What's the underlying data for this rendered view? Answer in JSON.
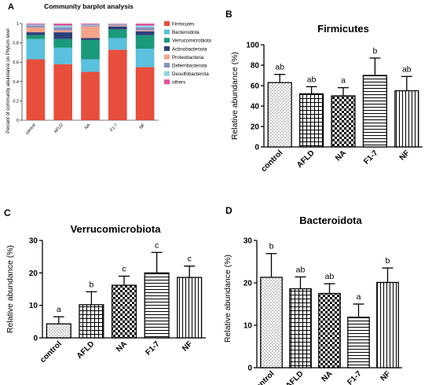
{
  "chart_data": [
    {
      "panel": "A",
      "type": "bar",
      "stacked": true,
      "title": "Community barplot analysis",
      "ylabel": "Percent of community abundance on Phylum level",
      "xlabel": "",
      "ylim": [
        0,
        1
      ],
      "yticks": [
        "0",
        "0.2",
        "0.4",
        "0.6",
        "0.8",
        "1"
      ],
      "categories": [
        "control",
        "AFLD",
        "NA",
        "F1-7",
        "NF"
      ],
      "series": [
        {
          "name": "Firmicutes",
          "color": "#e84e3c",
          "values": [
            0.63,
            0.58,
            0.5,
            0.73,
            0.55
          ]
        },
        {
          "name": "Bacteroidota",
          "color": "#5bc0de",
          "values": [
            0.21,
            0.17,
            0.13,
            0.12,
            0.19
          ]
        },
        {
          "name": "Verrucomicrobiota",
          "color": "#1a9a7a",
          "values": [
            0.04,
            0.09,
            0.2,
            0.09,
            0.14
          ]
        },
        {
          "name": "Actinobacteriota",
          "color": "#2d3f7a",
          "values": [
            0.03,
            0.07,
            0.02,
            0.03,
            0.04
          ]
        },
        {
          "name": "Proteobacteria",
          "color": "#f4a48a",
          "values": [
            0.05,
            0.02,
            0.12,
            0.01,
            0.01
          ]
        },
        {
          "name": "Deferribacterota",
          "color": "#8a90c0",
          "values": [
            0.02,
            0.03,
            0.01,
            0.01,
            0.03
          ]
        },
        {
          "name": "Desulfobacterota",
          "color": "#8fd3e0",
          "values": [
            0.01,
            0.02,
            0.01,
            0.005,
            0.02
          ]
        },
        {
          "name": "others",
          "color": "#e0529a",
          "values": [
            0.01,
            0.02,
            0.01,
            0.005,
            0.02
          ]
        }
      ]
    },
    {
      "panel": "B",
      "type": "bar",
      "title": "Firmicutes",
      "ylabel": "Relative abundance (%)",
      "xlabel": "",
      "ylim": [
        0,
        100
      ],
      "yticks": [
        "0",
        "20",
        "40",
        "60",
        "80",
        "100"
      ],
      "categories": [
        "control",
        "AFLD",
        "NA",
        "F1-7",
        "NF"
      ],
      "values": [
        63,
        52,
        50,
        70,
        55
      ],
      "errors": [
        8,
        7,
        8,
        17,
        14
      ],
      "sig_labels": [
        "ab",
        "ab",
        "a",
        "b",
        "ab"
      ]
    },
    {
      "panel": "C",
      "type": "bar",
      "title": "Verrucomicrobiota",
      "ylabel": "Relative abundance (%)",
      "xlabel": "",
      "ylim": [
        0,
        30
      ],
      "yticks": [
        "0",
        "10",
        "20",
        "30"
      ],
      "categories": [
        "control",
        "AFLD",
        "NA",
        "F1-7",
        "NF"
      ],
      "values": [
        4.3,
        10.2,
        16.2,
        20.0,
        18.6
      ],
      "errors": [
        2.2,
        4.0,
        2.8,
        6.3,
        3.5
      ],
      "sig_labels": [
        "a",
        "b",
        "c",
        "c",
        "c"
      ]
    },
    {
      "panel": "D",
      "type": "bar",
      "title": "Bacteroidota",
      "ylabel": "Relative abundance (%)",
      "xlabel": "",
      "ylim": [
        0,
        30
      ],
      "yticks": [
        "0",
        "10",
        "20",
        "30"
      ],
      "categories": [
        "control",
        "AFLD",
        "NA",
        "F1-7",
        "NF"
      ],
      "values": [
        21.3,
        18.6,
        17.5,
        11.9,
        20.1
      ],
      "errors": [
        5.6,
        2.8,
        2.3,
        3.1,
        3.4
      ],
      "sig_labels": [
        "b",
        "ab",
        "ab",
        "a",
        "b"
      ]
    }
  ]
}
